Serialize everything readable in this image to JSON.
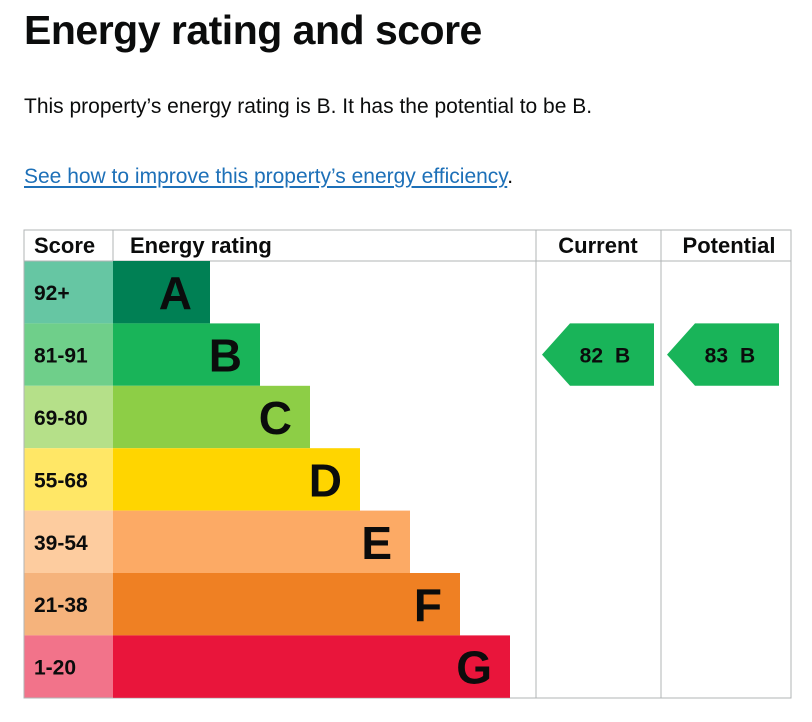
{
  "page": {
    "title": "Energy rating and score",
    "summary": "This property’s energy rating is B. It has the potential to be B.",
    "link_text": "See how to improve this property’s energy efficiency",
    "link_suffix": "."
  },
  "chart_data": {
    "type": "table",
    "headers": {
      "score": "Score",
      "rating": "Energy rating",
      "current": "Current",
      "potential": "Potential"
    },
    "bands": [
      {
        "band": "A",
        "score_range": "92+",
        "color": "#008054",
        "score_bg": "#66c6a3"
      },
      {
        "band": "B",
        "score_range": "81-91",
        "color": "#19b459",
        "score_bg": "#6fcf8a"
      },
      {
        "band": "C",
        "score_range": "69-80",
        "color": "#8dce46",
        "score_bg": "#b5e089"
      },
      {
        "band": "D",
        "score_range": "55-68",
        "color": "#ffd500",
        "score_bg": "#ffe766"
      },
      {
        "band": "E",
        "score_range": "39-54",
        "color": "#fcaa65",
        "score_bg": "#fdcc9f"
      },
      {
        "band": "F",
        "score_range": "21-38",
        "color": "#ef8023",
        "score_bg": "#f5b37c"
      },
      {
        "band": "G",
        "score_range": "1-20",
        "color": "#e9153b",
        "score_bg": "#f2738a"
      }
    ],
    "current": {
      "score": "82",
      "band": "B",
      "color": "#19b459"
    },
    "potential": {
      "score": "83",
      "band": "B",
      "color": "#19b459"
    }
  }
}
